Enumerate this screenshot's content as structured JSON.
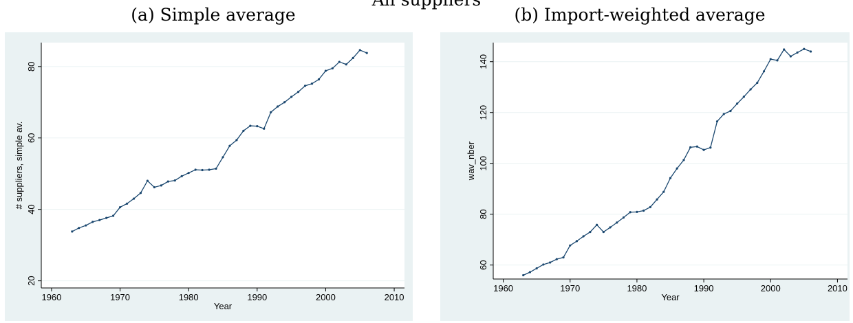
{
  "title": "All suppliers",
  "chart_data": [
    {
      "type": "line",
      "title": "(a) Simple average",
      "xlabel": "Year",
      "ylabel": "# suppliers, simple av.",
      "x": [
        1963,
        1964,
        1965,
        1966,
        1967,
        1968,
        1969,
        1970,
        1971,
        1972,
        1973,
        1974,
        1975,
        1976,
        1977,
        1978,
        1979,
        1980,
        1981,
        1982,
        1983,
        1984,
        1985,
        1986,
        1987,
        1988,
        1989,
        1990,
        1991,
        1992,
        1993,
        1994,
        1995,
        1996,
        1997,
        1998,
        1999,
        2000,
        2001,
        2002,
        2003,
        2004,
        2005,
        2006
      ],
      "values": [
        33.8,
        34.8,
        35.5,
        36.5,
        37,
        37.6,
        38.2,
        40.6,
        41.6,
        43,
        44.6,
        48,
        46.2,
        46.7,
        47.8,
        48.1,
        49.3,
        50.2,
        51.1,
        51,
        51.1,
        51.4,
        54.6,
        57.8,
        59.4,
        62,
        63.4,
        63.3,
        62.6,
        67.2,
        68.8,
        70,
        71.5,
        72.9,
        74.6,
        75.2,
        76.4,
        78.8,
        79.5,
        81.3,
        80.6,
        82.4,
        84.6,
        83.8
      ],
      "color": "#1a476f",
      "xlim": [
        1958.5,
        2011.5
      ],
      "xticks": [
        1960,
        1970,
        1980,
        1990,
        2000,
        2010
      ],
      "ylim": [
        18,
        86.7
      ],
      "yticks": [
        20,
        40,
        60,
        80
      ],
      "grid": true
    },
    {
      "type": "line",
      "title": "(b) Import-weighted average",
      "xlabel": "Year",
      "ylabel": "wav_nber",
      "x": [
        1963,
        1964,
        1965,
        1966,
        1967,
        1968,
        1969,
        1970,
        1971,
        1972,
        1973,
        1974,
        1975,
        1976,
        1977,
        1978,
        1979,
        1980,
        1981,
        1982,
        1983,
        1984,
        1985,
        1986,
        1987,
        1988,
        1989,
        1990,
        1991,
        1992,
        1993,
        1994,
        1995,
        1996,
        1997,
        1998,
        1999,
        2000,
        2001,
        2002,
        2003,
        2004,
        2005,
        2006
      ],
      "values": [
        56,
        57.2,
        58.7,
        60.2,
        61,
        62.3,
        63,
        67.7,
        69.4,
        71.3,
        73,
        75.8,
        73,
        74.8,
        76.7,
        78.7,
        80.8,
        80.9,
        81.4,
        82.8,
        85.8,
        88.8,
        94.2,
        98,
        101.3,
        106.3,
        106.6,
        105.3,
        106.2,
        116.5,
        119.4,
        120.6,
        123.5,
        126.2,
        129.1,
        131.7,
        136.2,
        141,
        140.5,
        144.8,
        142.1,
        143.6,
        145,
        144
      ],
      "color": "#1a476f",
      "xlim": [
        1958.5,
        2011.5
      ],
      "xticks": [
        1960,
        1970,
        1980,
        1990,
        2000,
        2010
      ],
      "ylim": [
        54.5,
        147.5
      ],
      "yticks": [
        60,
        80,
        100,
        120,
        140
      ],
      "grid": true
    }
  ]
}
